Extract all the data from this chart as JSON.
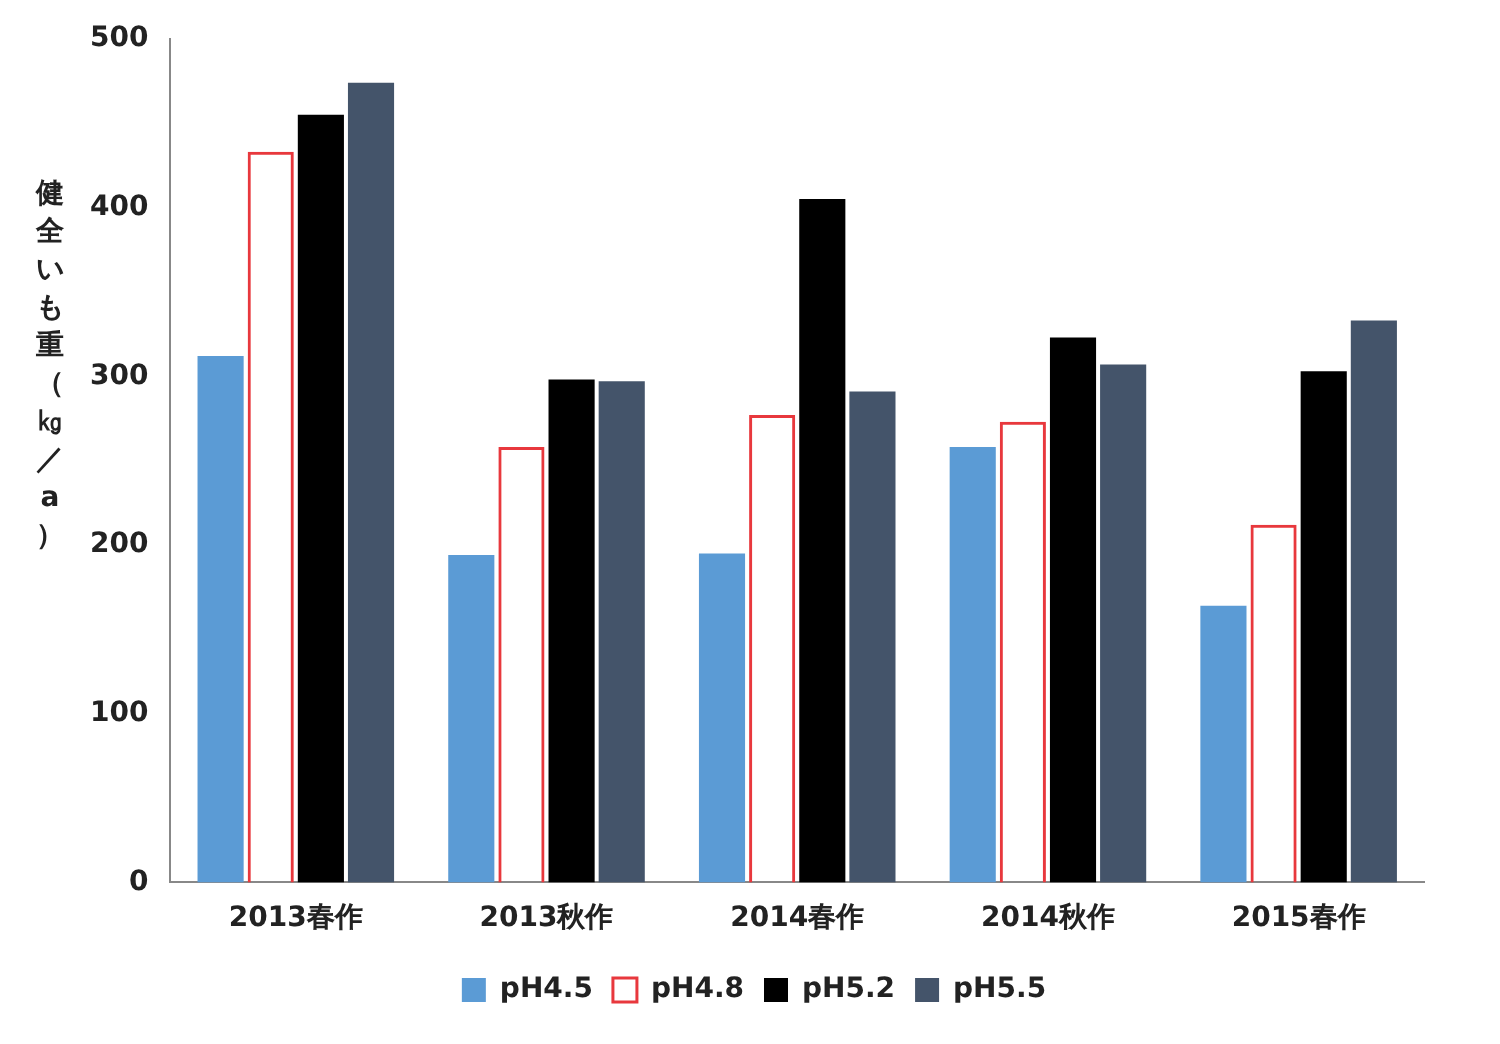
{
  "chart_data": {
    "type": "bar",
    "ylabel": "健全いも重（㎏／a）",
    "categories": [
      "2013春作",
      "2013秋作",
      "2014春作",
      "2014秋作",
      "2015春作"
    ],
    "series": [
      {
        "name": "pH4.5",
        "color": "#5b9bd5",
        "values": [
          312,
          194,
          195,
          258,
          164
        ]
      },
      {
        "name": "pH4.8",
        "color": "#e8383d",
        "values": [
          433,
          258,
          277,
          273,
          212
        ]
      },
      {
        "name": "pH5.2",
        "color": "#000000",
        "values": [
          455,
          298,
          405,
          323,
          303
        ]
      },
      {
        "name": "pH5.5",
        "color": "#44546a",
        "values": [
          474,
          297,
          291,
          307,
          333
        ]
      }
    ],
    "ylim": [
      0,
      500
    ],
    "yticks": [
      0,
      100,
      200,
      300,
      400,
      500
    ],
    "grid": false,
    "legend": "bottom"
  }
}
